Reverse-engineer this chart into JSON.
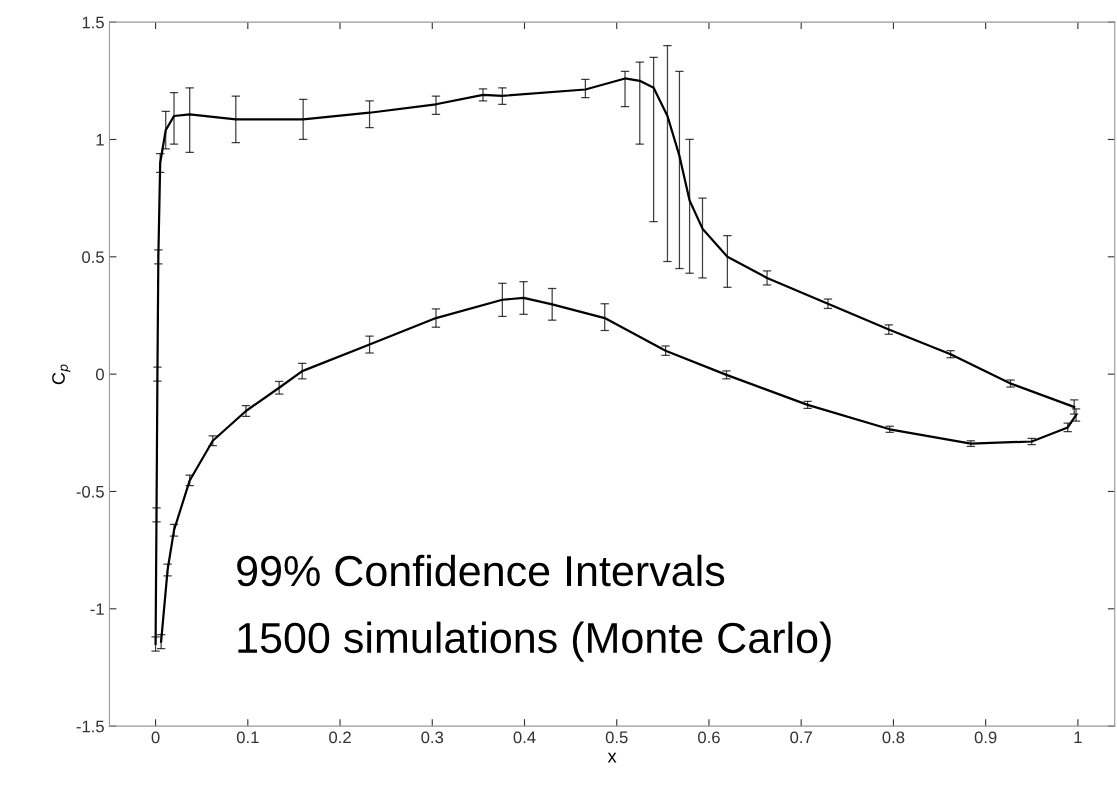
{
  "chart_data": {
    "type": "line",
    "xlabel": "x",
    "ylabel": "C$_{p}$",
    "annotations": [
      "99% Confidence Intervals",
      "1500 simulations (Monte Carlo)"
    ],
    "series": [
      {
        "color": "#000000",
        "x": [
          0,
          0.001,
          0.002,
          0.003,
          0.005,
          0.011,
          0.02,
          0.037,
          0.087,
          0.16,
          0.232,
          0.304,
          0.355,
          0.376,
          0.466,
          0.509,
          0.525,
          0.54,
          0.555,
          0.568,
          0.579,
          0.593,
          0.62,
          0.663,
          0.729,
          0.795,
          0.862,
          0.927,
          0.996
        ],
        "values": [
          -1.15,
          -0.6,
          0.0,
          0.5,
          0.9,
          1.04,
          1.1,
          1.107,
          1.086,
          1.086,
          1.114,
          1.15,
          1.19,
          1.186,
          1.213,
          1.26,
          1.25,
          1.22,
          1.1,
          0.93,
          0.74,
          0.62,
          0.5,
          0.41,
          0.3,
          0.19,
          0.085,
          -0.04,
          -0.14
        ],
        "errors": [
          [
            -1.18,
            -1.12
          ],
          [
            -0.63,
            -0.57
          ],
          [
            -0.03,
            0.03
          ],
          [
            0.47,
            0.53
          ],
          [
            0.86,
            0.94
          ],
          [
            0.96,
            1.12
          ],
          [
            0.98,
            1.2
          ],
          [
            0.945,
            1.22
          ],
          [
            0.987,
            1.185
          ],
          [
            1.0,
            1.171
          ],
          [
            1.05,
            1.164
          ],
          [
            1.107,
            1.185
          ],
          [
            1.164,
            1.216
          ],
          [
            1.15,
            1.22
          ],
          [
            1.178,
            1.256
          ],
          [
            1.14,
            1.29
          ],
          [
            0.98,
            1.33
          ],
          [
            0.65,
            1.35
          ],
          [
            0.48,
            1.4
          ],
          [
            0.45,
            1.29
          ],
          [
            0.43,
            1.0
          ],
          [
            0.41,
            0.75
          ],
          [
            0.37,
            0.59
          ],
          [
            0.38,
            0.44
          ],
          [
            0.28,
            0.32
          ],
          [
            0.17,
            0.21
          ],
          [
            0.07,
            0.1
          ],
          [
            -0.055,
            -0.025
          ],
          [
            -0.17,
            -0.11
          ]
        ]
      },
      {
        "color": "#000000",
        "x": [
          0.006,
          0.013,
          0.02,
          0.037,
          0.062,
          0.098,
          0.134,
          0.159,
          0.232,
          0.304,
          0.376,
          0.399,
          0.43,
          0.487,
          0.553,
          0.619,
          0.707,
          0.796,
          0.884,
          0.95,
          0.989,
          0.998
        ],
        "values": [
          -1.14,
          -0.835,
          -0.665,
          -0.453,
          -0.284,
          -0.157,
          -0.058,
          0.013,
          0.126,
          0.239,
          0.317,
          0.325,
          0.297,
          0.239,
          0.1,
          -0.003,
          -0.131,
          -0.235,
          -0.296,
          -0.287,
          -0.227,
          -0.174
        ],
        "errors": [
          [
            -1.17,
            -1.11
          ],
          [
            -0.86,
            -0.81
          ],
          [
            -0.69,
            -0.64
          ],
          [
            -0.475,
            -0.43
          ],
          [
            -0.305,
            -0.263
          ],
          [
            -0.18,
            -0.134
          ],
          [
            -0.085,
            -0.031
          ],
          [
            -0.02,
            0.046
          ],
          [
            0.09,
            0.162
          ],
          [
            0.2,
            0.278
          ],
          [
            0.246,
            0.387
          ],
          [
            0.255,
            0.394
          ],
          [
            0.23,
            0.365
          ],
          [
            0.186,
            0.3
          ],
          [
            0.08,
            0.12
          ],
          [
            -0.02,
            0.014
          ],
          [
            -0.146,
            -0.116
          ],
          [
            -0.248,
            -0.222
          ],
          [
            -0.308,
            -0.284
          ],
          [
            -0.3,
            -0.274
          ],
          [
            -0.245,
            -0.209
          ],
          [
            -0.2,
            -0.148
          ]
        ]
      }
    ],
    "xlim": [
      -0.05,
      1.04
    ],
    "ylim": [
      -1.5,
      1.5
    ],
    "xticks": [
      0,
      0.1,
      0.2,
      0.3,
      0.4,
      0.5,
      0.6,
      0.7,
      0.8,
      0.9,
      1
    ],
    "yticks": [
      -1.5,
      -1,
      -0.5,
      0,
      0.5,
      1,
      1.5
    ],
    "marker": "none",
    "line_style": "solid"
  }
}
